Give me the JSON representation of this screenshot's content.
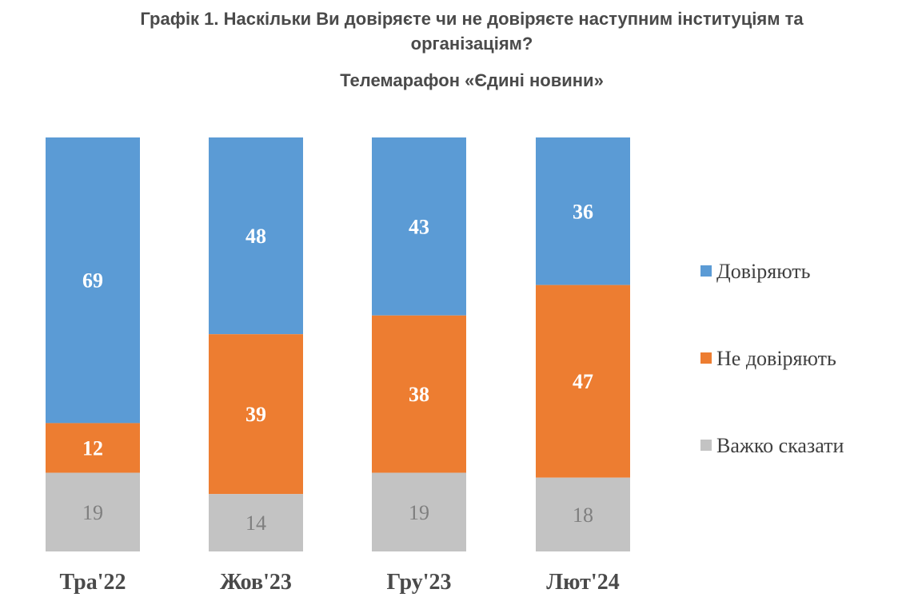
{
  "header": {
    "title": "Графік 1. Наскільки Ви довіряєте чи не довіряєте наступним інституціям та організаціям?",
    "subtitle": "Телемарафон «Єдині новини»"
  },
  "chart_data": {
    "type": "bar",
    "stacked": true,
    "categories": [
      "Тра'22",
      "Жов'23",
      "Гру'23",
      "Лют'24"
    ],
    "series": [
      {
        "name": "Довіряють",
        "values": [
          69,
          48,
          43,
          36
        ],
        "color": "#5b9bd5"
      },
      {
        "name": "Не довіряють",
        "values": [
          12,
          39,
          38,
          47
        ],
        "color": "#ed7d31"
      },
      {
        "name": "Важко сказати",
        "values": [
          19,
          14,
          19,
          18
        ],
        "color": "#c3c3c3"
      }
    ],
    "ylim": [
      0,
      100
    ],
    "grid": false,
    "legend": "right"
  }
}
